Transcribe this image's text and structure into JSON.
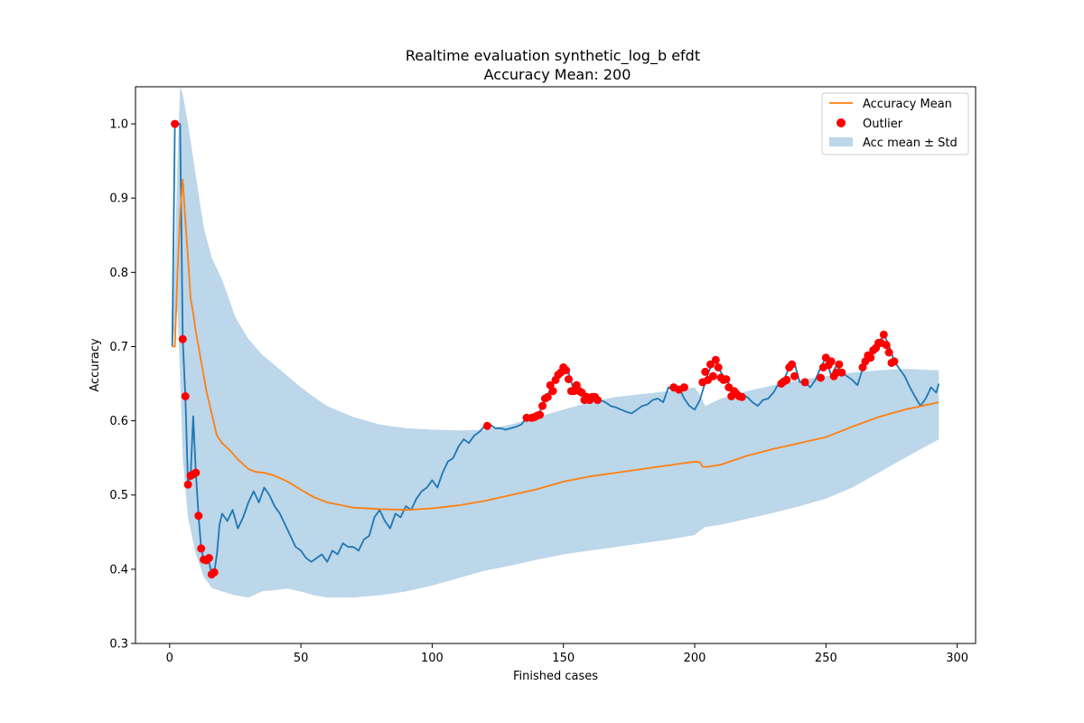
{
  "chart_data": {
    "type": "line",
    "title": "Realtime evaluation synthetic_log_b efdt",
    "subtitle": "Accuracy Mean: 200",
    "xlabel": "Finished cases",
    "ylabel": "Accuracy",
    "xlim": [
      -13,
      307
    ],
    "ylim": [
      0.3,
      1.05
    ],
    "xticks": [
      0,
      50,
      100,
      150,
      200,
      250,
      300
    ],
    "yticks": [
      0.3,
      0.4,
      0.5,
      0.6,
      0.7,
      0.8,
      0.9,
      1.0
    ],
    "grid": false,
    "legend_position": "top-right",
    "legend": [
      "Accuracy Mean",
      "Outlier",
      "Acc mean ± Std"
    ],
    "colors": {
      "accuracy": "#1f77b4",
      "mean": "#ff7f0e",
      "outlier": "#ff0000",
      "band": "#bcd6ea"
    },
    "accuracy": {
      "x": [
        1,
        2,
        3,
        4,
        5,
        6,
        7,
        8,
        9,
        10,
        11,
        12,
        13,
        14,
        15,
        16,
        17,
        18,
        19,
        20,
        22,
        24,
        26,
        28,
        30,
        32,
        34,
        36,
        38,
        40,
        42,
        44,
        46,
        48,
        50,
        52,
        54,
        56,
        58,
        60,
        62,
        64,
        66,
        68,
        70,
        72,
        74,
        76,
        78,
        80,
        82,
        84,
        86,
        88,
        90,
        92,
        94,
        96,
        98,
        100,
        102,
        104,
        106,
        108,
        110,
        112,
        114,
        116,
        118,
        120,
        122,
        124,
        126,
        128,
        130,
        132,
        134,
        136,
        138,
        140,
        142,
        144,
        146,
        148,
        150,
        152,
        154,
        156,
        158,
        160,
        162,
        164,
        166,
        168,
        170,
        172,
        174,
        176,
        178,
        180,
        182,
        184,
        186,
        188,
        190,
        192,
        194,
        196,
        198,
        200,
        202,
        204,
        206,
        208,
        210,
        212,
        214,
        216,
        218,
        220,
        222,
        224,
        226,
        228,
        230,
        232,
        234,
        236,
        238,
        240,
        242,
        244,
        246,
        248,
        250,
        252,
        254,
        256,
        258,
        260,
        262,
        264,
        266,
        268,
        270,
        272,
        274,
        276,
        278,
        280,
        282,
        284,
        286,
        288,
        290,
        292,
        293
      ],
      "y": [
        0.7,
        1.0,
        1.0,
        1.0,
        0.71,
        0.633,
        0.514,
        0.526,
        0.606,
        0.53,
        0.472,
        0.428,
        0.413,
        0.415,
        0.41,
        0.393,
        0.396,
        0.42,
        0.46,
        0.475,
        0.465,
        0.48,
        0.455,
        0.47,
        0.49,
        0.505,
        0.49,
        0.51,
        0.5,
        0.485,
        0.475,
        0.46,
        0.445,
        0.43,
        0.425,
        0.415,
        0.41,
        0.415,
        0.42,
        0.41,
        0.425,
        0.42,
        0.435,
        0.43,
        0.43,
        0.425,
        0.44,
        0.445,
        0.47,
        0.48,
        0.465,
        0.455,
        0.475,
        0.47,
        0.485,
        0.48,
        0.495,
        0.505,
        0.51,
        0.52,
        0.51,
        0.53,
        0.545,
        0.55,
        0.565,
        0.575,
        0.57,
        0.58,
        0.585,
        0.593,
        0.595,
        0.59,
        0.59,
        0.588,
        0.59,
        0.592,
        0.595,
        0.604,
        0.604,
        0.605,
        0.62,
        0.635,
        0.65,
        0.66,
        0.672,
        0.665,
        0.64,
        0.64,
        0.638,
        0.63,
        0.632,
        0.628,
        0.625,
        0.62,
        0.618,
        0.615,
        0.612,
        0.61,
        0.615,
        0.62,
        0.622,
        0.628,
        0.63,
        0.625,
        0.645,
        0.64,
        0.645,
        0.63,
        0.62,
        0.615,
        0.628,
        0.652,
        0.672,
        0.682,
        0.665,
        0.655,
        0.645,
        0.64,
        0.635,
        0.632,
        0.625,
        0.62,
        0.628,
        0.63,
        0.638,
        0.65,
        0.655,
        0.672,
        0.678,
        0.652,
        0.652,
        0.645,
        0.655,
        0.672,
        0.685,
        0.66,
        0.675,
        0.665,
        0.66,
        0.655,
        0.648,
        0.67,
        0.685,
        0.695,
        0.705,
        0.716,
        0.702,
        0.68,
        0.67,
        0.66,
        0.645,
        0.632,
        0.62,
        0.63,
        0.645,
        0.638,
        0.65
      ]
    },
    "mean": {
      "x": [
        1,
        2,
        3,
        4,
        5,
        6,
        7,
        8,
        9,
        10,
        12,
        14,
        16,
        18,
        20,
        23,
        26,
        30,
        33,
        36,
        40,
        45,
        50,
        55,
        60,
        70,
        80,
        90,
        100,
        110,
        120,
        130,
        140,
        150,
        160,
        170,
        180,
        190,
        200,
        202,
        203,
        205,
        210,
        220,
        230,
        240,
        250,
        260,
        270,
        280,
        293
      ],
      "y": [
        0.7,
        0.7,
        0.8,
        0.88,
        0.925,
        0.87,
        0.82,
        0.765,
        0.745,
        0.72,
        0.68,
        0.64,
        0.61,
        0.58,
        0.57,
        0.56,
        0.548,
        0.535,
        0.531,
        0.53,
        0.526,
        0.518,
        0.507,
        0.497,
        0.49,
        0.483,
        0.481,
        0.48,
        0.482,
        0.486,
        0.492,
        0.5,
        0.508,
        0.518,
        0.525,
        0.53,
        0.535,
        0.54,
        0.545,
        0.544,
        0.538,
        0.538,
        0.541,
        0.553,
        0.562,
        0.57,
        0.578,
        0.592,
        0.605,
        0.615,
        0.625
      ]
    },
    "std_band": {
      "x": [
        1,
        3,
        4,
        5,
        7,
        10,
        13,
        16,
        20,
        25,
        30,
        35,
        40,
        45,
        50,
        55,
        60,
        70,
        80,
        90,
        100,
        110,
        120,
        130,
        140,
        150,
        160,
        170,
        180,
        190,
        200,
        202,
        204,
        210,
        220,
        230,
        240,
        250,
        260,
        270,
        280,
        293
      ],
      "upper": [
        0.7,
        0.95,
        1.05,
        1.04,
        1.0,
        0.93,
        0.86,
        0.82,
        0.79,
        0.74,
        0.71,
        0.69,
        0.675,
        0.66,
        0.645,
        0.632,
        0.62,
        0.605,
        0.595,
        0.59,
        0.588,
        0.587,
        0.588,
        0.595,
        0.605,
        0.615,
        0.625,
        0.632,
        0.636,
        0.64,
        0.645,
        0.635,
        0.62,
        0.63,
        0.64,
        0.648,
        0.655,
        0.66,
        0.665,
        0.668,
        0.67,
        0.668
      ],
      "lower": [
        0.7,
        0.75,
        0.66,
        0.55,
        0.47,
        0.42,
        0.39,
        0.375,
        0.37,
        0.365,
        0.362,
        0.37,
        0.372,
        0.374,
        0.37,
        0.365,
        0.362,
        0.362,
        0.365,
        0.37,
        0.378,
        0.388,
        0.398,
        0.405,
        0.413,
        0.42,
        0.425,
        0.43,
        0.435,
        0.44,
        0.446,
        0.452,
        0.457,
        0.46,
        0.468,
        0.476,
        0.485,
        0.495,
        0.51,
        0.53,
        0.55,
        0.575
      ]
    },
    "outliers": {
      "x": [
        2,
        5,
        6,
        7,
        8,
        9,
        10,
        11,
        12,
        13,
        14,
        15,
        16,
        17,
        121,
        136,
        138,
        139,
        140,
        141,
        142,
        143,
        144,
        145,
        146,
        147,
        148,
        149,
        150,
        151,
        152,
        153,
        154,
        155,
        156,
        157,
        158,
        159,
        160,
        161,
        162,
        163,
        192,
        194,
        196,
        203,
        204,
        205,
        206,
        207,
        208,
        209,
        210,
        211,
        212,
        213,
        214,
        215,
        216,
        217,
        218,
        233,
        234,
        235,
        236,
        237,
        238,
        242,
        248,
        249,
        250,
        251,
        252,
        253,
        254,
        255,
        256,
        264,
        265,
        266,
        267,
        268,
        269,
        270,
        271,
        272,
        273,
        274,
        275,
        276
      ],
      "y": [
        1.0,
        0.71,
        0.633,
        0.514,
        0.526,
        0.528,
        0.53,
        0.472,
        0.428,
        0.413,
        0.412,
        0.415,
        0.393,
        0.396,
        0.593,
        0.604,
        0.604,
        0.605,
        0.607,
        0.608,
        0.62,
        0.63,
        0.632,
        0.648,
        0.64,
        0.655,
        0.662,
        0.665,
        0.672,
        0.668,
        0.656,
        0.64,
        0.64,
        0.648,
        0.64,
        0.638,
        0.628,
        0.632,
        0.628,
        0.632,
        0.632,
        0.628,
        0.645,
        0.642,
        0.645,
        0.652,
        0.666,
        0.655,
        0.676,
        0.66,
        0.682,
        0.672,
        0.658,
        0.655,
        0.656,
        0.645,
        0.633,
        0.64,
        0.636,
        0.633,
        0.632,
        0.65,
        0.653,
        0.655,
        0.672,
        0.676,
        0.66,
        0.652,
        0.658,
        0.672,
        0.685,
        0.675,
        0.68,
        0.66,
        0.665,
        0.676,
        0.665,
        0.672,
        0.68,
        0.688,
        0.685,
        0.695,
        0.698,
        0.705,
        0.705,
        0.716,
        0.702,
        0.692,
        0.678,
        0.68
      ]
    }
  }
}
